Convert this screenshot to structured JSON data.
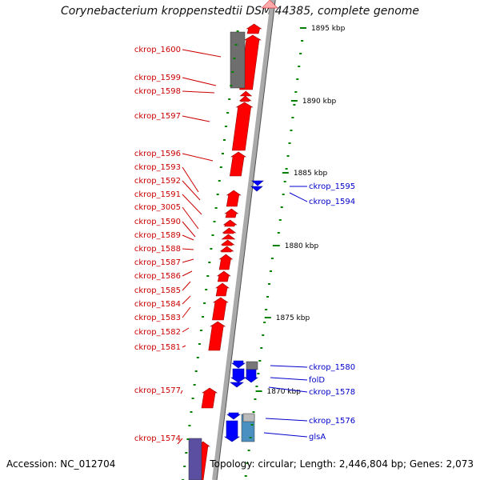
{
  "title": "Corynebacterium kroppenstedtii DSM 44385, complete genome",
  "footer": {
    "accession": "Accession: NC_012704",
    "summary": "Topology: circular; Length: 2,446,804 bp; Genes: 2,073"
  },
  "colors": {
    "forward_gene": "#ff0000",
    "reverse_gene": "#0000ff",
    "backbone": "#a9a9a9",
    "tick": "#008000",
    "left_label": "#cc0000",
    "right_label": "#0000cc"
  },
  "kbp_ticks": [
    "1895 kbp",
    "1890 kbp",
    "1885 kbp",
    "1880 kbp",
    "1875 kbp",
    "1870 kbp"
  ],
  "left_genes": [
    "ckrop_1600",
    "ckrop_1599",
    "ckrop_1598",
    "ckrop_1597",
    "ckrop_1596",
    "ckrop_1593",
    "ckrop_1592",
    "ckrop_1591",
    "ckrop_3005",
    "ckrop_1590",
    "ckrop_1589",
    "ckrop_1588",
    "ckrop_1587",
    "ckrop_1586",
    "ckrop_1585",
    "ckrop_1584",
    "ckrop_1583",
    "ckrop_1582",
    "ckrop_1581",
    "ckrop_1577",
    "ckrop_1574"
  ],
  "right_genes": [
    "ckrop_1595",
    "ckrop_1594",
    "ckrop_1580",
    "folD",
    "ckrop_1578",
    "ckrop_1576",
    "glsA"
  ]
}
